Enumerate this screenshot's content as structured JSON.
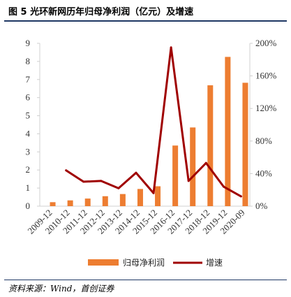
{
  "title": "图 5 光环新网历年归母净利润（亿元）及增速",
  "source": "资料来源：Wind，首创证券",
  "colors": {
    "bar": "#ed7d31",
    "line": "#a00000",
    "axis": "#d0d0d0",
    "rule": "#1f3864"
  },
  "chart_data": {
    "type": "bar",
    "categories": [
      "2009-12",
      "2010-12",
      "2011-12",
      "2012-12",
      "2013-12",
      "2014-12",
      "2015-12",
      "2016-12",
      "2017-12",
      "2018-12",
      "2019-12",
      "2020-09"
    ],
    "series": [
      {
        "name": "归母净利润",
        "type": "bar",
        "axis": "left",
        "values": [
          0.22,
          0.32,
          0.42,
          0.55,
          0.67,
          0.95,
          1.1,
          3.35,
          4.35,
          6.68,
          8.25,
          6.82
        ]
      },
      {
        "name": "增速",
        "type": "line",
        "axis": "right",
        "values": [
          null,
          44,
          30,
          31,
          22,
          41,
          16,
          195,
          31,
          53,
          24,
          12
        ]
      }
    ],
    "y_left": {
      "ticks": [
        "0",
        "1",
        "2",
        "3",
        "4",
        "5",
        "6",
        "7",
        "8",
        "9"
      ],
      "ylim": [
        0,
        9
      ]
    },
    "y_right": {
      "ticks": [
        "0%",
        "40%",
        "80%",
        "120%",
        "160%",
        "200%"
      ],
      "ylim": [
        0,
        200
      ]
    },
    "grid": false,
    "legend": {
      "position": "bottom"
    }
  }
}
